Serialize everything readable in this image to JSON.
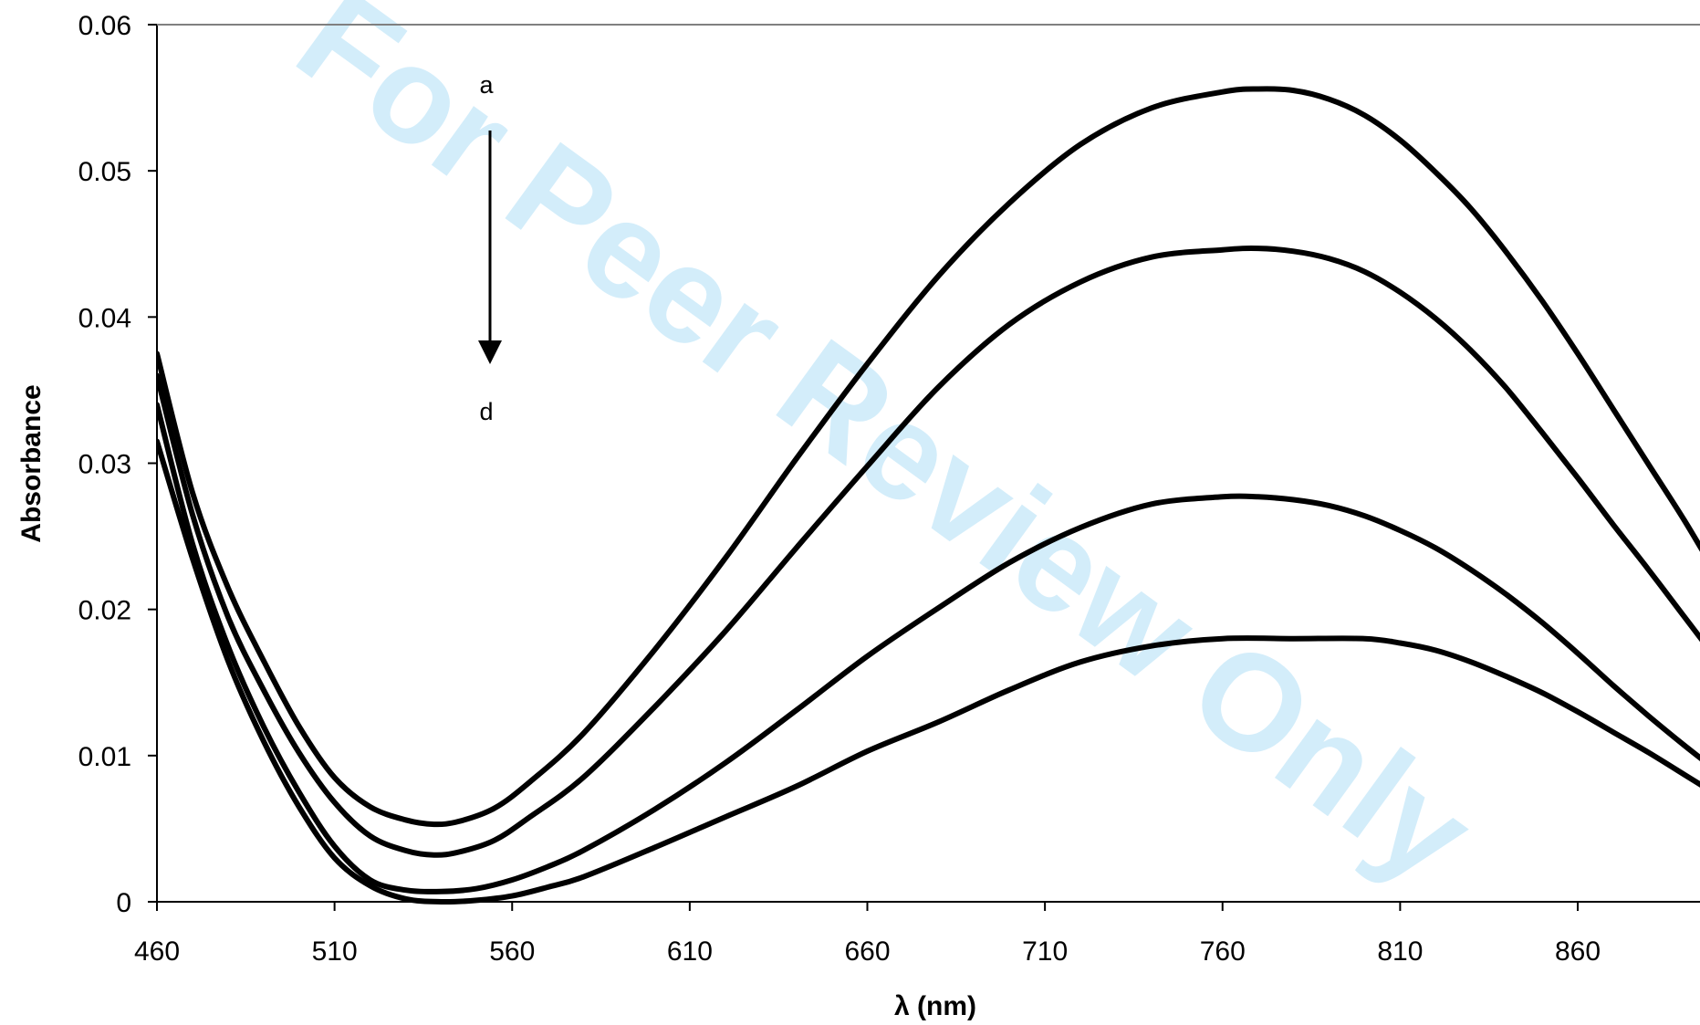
{
  "watermark": "For Peer Review Only",
  "chart_data": {
    "type": "line",
    "title": "",
    "xlabel": "λ (nm)",
    "ylabel": "Absorbance",
    "xlim": [
      460,
      900
    ],
    "ylim": [
      0,
      0.06
    ],
    "xticks": [
      460,
      510,
      560,
      610,
      660,
      710,
      760,
      810,
      860
    ],
    "yticks": [
      0,
      0.01,
      0.02,
      0.03,
      0.04,
      0.05,
      0.06
    ],
    "ytick_labels": [
      "0",
      "0.01",
      "0.02",
      "0.03",
      "0.04",
      "0.05",
      "0.06"
    ],
    "grid": false,
    "legend": "none",
    "annotations": {
      "start_label": "a",
      "end_label": "d",
      "arrow": "downward"
    },
    "series": [
      {
        "x": [
          460,
          470,
          480,
          490,
          500,
          510,
          520,
          530,
          538,
          545,
          555,
          565,
          580,
          600,
          620,
          640,
          660,
          680,
          700,
          720,
          740,
          760,
          770,
          780,
          790,
          800,
          810,
          820,
          830,
          840,
          850,
          860,
          870,
          880,
          890,
          900
        ],
        "y": [
          0.0375,
          0.028,
          0.0215,
          0.0165,
          0.012,
          0.0085,
          0.0065,
          0.0056,
          0.0053,
          0.0055,
          0.0064,
          0.0082,
          0.0115,
          0.0172,
          0.0235,
          0.0303,
          0.0368,
          0.0428,
          0.0478,
          0.0518,
          0.0543,
          0.0554,
          0.0556,
          0.0555,
          0.0549,
          0.0538,
          0.0521,
          0.0499,
          0.0474,
          0.0444,
          0.0411,
          0.0375,
          0.0337,
          0.0299,
          0.0261,
          0.022
        ]
      },
      {
        "x": [
          460,
          470,
          480,
          490,
          500,
          510,
          520,
          530,
          538,
          545,
          555,
          565,
          580,
          600,
          620,
          640,
          660,
          680,
          700,
          720,
          740,
          760,
          770,
          780,
          790,
          800,
          810,
          820,
          830,
          840,
          850,
          860,
          870,
          880,
          890,
          900
        ],
        "y": [
          0.036,
          0.0265,
          0.0195,
          0.0145,
          0.0102,
          0.0068,
          0.0045,
          0.0035,
          0.0032,
          0.0034,
          0.0042,
          0.0058,
          0.0085,
          0.0133,
          0.0185,
          0.0242,
          0.0298,
          0.0352,
          0.0395,
          0.0424,
          0.0441,
          0.0446,
          0.0447,
          0.0445,
          0.044,
          0.0431,
          0.0417,
          0.0399,
          0.0377,
          0.0351,
          0.0321,
          0.029,
          0.0258,
          0.0227,
          0.0195,
          0.0163
        ]
      },
      {
        "x": [
          460,
          470,
          480,
          490,
          500,
          510,
          520,
          530,
          540,
          550,
          560,
          570,
          580,
          600,
          620,
          640,
          660,
          680,
          700,
          720,
          740,
          760,
          770,
          780,
          790,
          800,
          810,
          820,
          830,
          840,
          850,
          860,
          870,
          880,
          890,
          900
        ],
        "y": [
          0.034,
          0.0245,
          0.0175,
          0.012,
          0.0075,
          0.0038,
          0.0015,
          0.0008,
          0.0007,
          0.0009,
          0.0015,
          0.0024,
          0.0035,
          0.0063,
          0.0095,
          0.0131,
          0.0168,
          0.0201,
          0.0232,
          0.0256,
          0.0272,
          0.0277,
          0.0277,
          0.0275,
          0.0271,
          0.0264,
          0.0254,
          0.0242,
          0.0227,
          0.021,
          0.0191,
          0.017,
          0.0148,
          0.0127,
          0.0107,
          0.0088
        ]
      },
      {
        "x": [
          460,
          470,
          480,
          490,
          500,
          510,
          520,
          530,
          540,
          550,
          560,
          570,
          580,
          600,
          620,
          640,
          660,
          680,
          700,
          720,
          740,
          760,
          780,
          800,
          810,
          820,
          830,
          840,
          850,
          860,
          870,
          880,
          890,
          900
        ],
        "y": [
          0.0315,
          0.0235,
          0.0165,
          0.011,
          0.0065,
          0.003,
          0.0011,
          0.0002,
          0.0,
          0.0001,
          0.0004,
          0.001,
          0.0017,
          0.0037,
          0.0058,
          0.0079,
          0.0103,
          0.0123,
          0.0145,
          0.0164,
          0.0175,
          0.018,
          0.018,
          0.018,
          0.0177,
          0.0172,
          0.0164,
          0.0154,
          0.0143,
          0.013,
          0.0116,
          0.0102,
          0.0087,
          0.0072
        ]
      }
    ]
  }
}
